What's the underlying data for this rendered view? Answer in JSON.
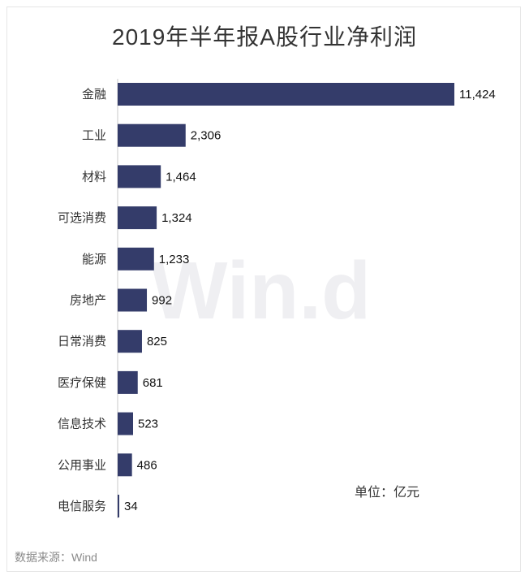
{
  "chart_data": {
    "type": "bar",
    "orientation": "horizontal",
    "title": "2019年半年报A股行业净利润",
    "unit_label": "单位：亿元",
    "source_label": "数据来源：Wind",
    "watermark": "Win.d",
    "bar_color": "#343c6a",
    "categories": [
      "金融",
      "工业",
      "材料",
      "可选消费",
      "能源",
      "房地产",
      "日常消费",
      "医疗保健",
      "信息技术",
      "公用事业",
      "电信服务"
    ],
    "values": [
      11424,
      2306,
      1464,
      1324,
      1233,
      992,
      825,
      681,
      523,
      486,
      34
    ],
    "value_labels": [
      "11,424",
      "2,306",
      "1,464",
      "1,324",
      "1,233",
      "992",
      "825",
      "681",
      "523",
      "486",
      "34"
    ],
    "xlim": [
      0,
      11424
    ],
    "grid": false,
    "legend": "none"
  }
}
